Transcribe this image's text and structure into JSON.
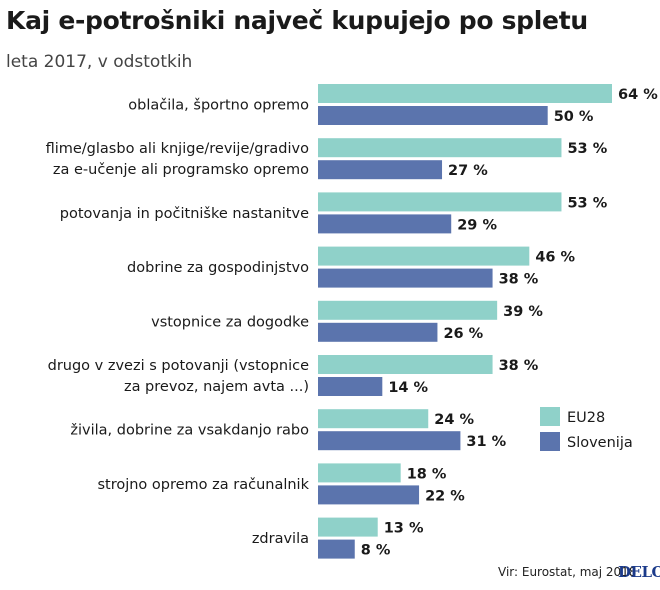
{
  "title": "Kaj e-potrošniki največ kupujejo po spletu",
  "subtitle": "leta 2017, v odstotkih",
  "source": "Vir: Eurostat, maj 2018",
  "logo": "DELO",
  "colors": {
    "eu28": "#8fd1c9",
    "slovenija": "#5b74ad",
    "logo": "#1b3a8a"
  },
  "chart_data": {
    "type": "bar",
    "orientation": "horizontal",
    "title": "Kaj e-potrošniki največ kupujejo po spletu",
    "subtitle": "leta 2017, v odstotkih",
    "unit_suffix": " %",
    "categories": [
      [
        "oblačila, športno opremo"
      ],
      [
        "flime/glasbo ali knjige/revije/gradivo",
        "za e-učenje ali programsko opremo"
      ],
      [
        "potovanja in počitniške nastanitve"
      ],
      [
        "dobrine za gospodinjstvo"
      ],
      [
        "vstopnice za dogodke"
      ],
      [
        "drugo v zvezi s potovanji (vstopnice",
        "za prevoz, najem avta ...)"
      ],
      [
        "živila, dobrine za vsakdanjo rabo"
      ],
      [
        "strojno opremo za računalnik"
      ],
      [
        "zdravila"
      ]
    ],
    "series": [
      {
        "name": "EU28",
        "values": [
          64,
          53,
          53,
          46,
          39,
          38,
          24,
          18,
          13
        ]
      },
      {
        "name": "Slovenija",
        "values": [
          50,
          27,
          29,
          38,
          26,
          14,
          31,
          22,
          8
        ]
      }
    ],
    "xlim": [
      0,
      64
    ],
    "legend": "right"
  }
}
